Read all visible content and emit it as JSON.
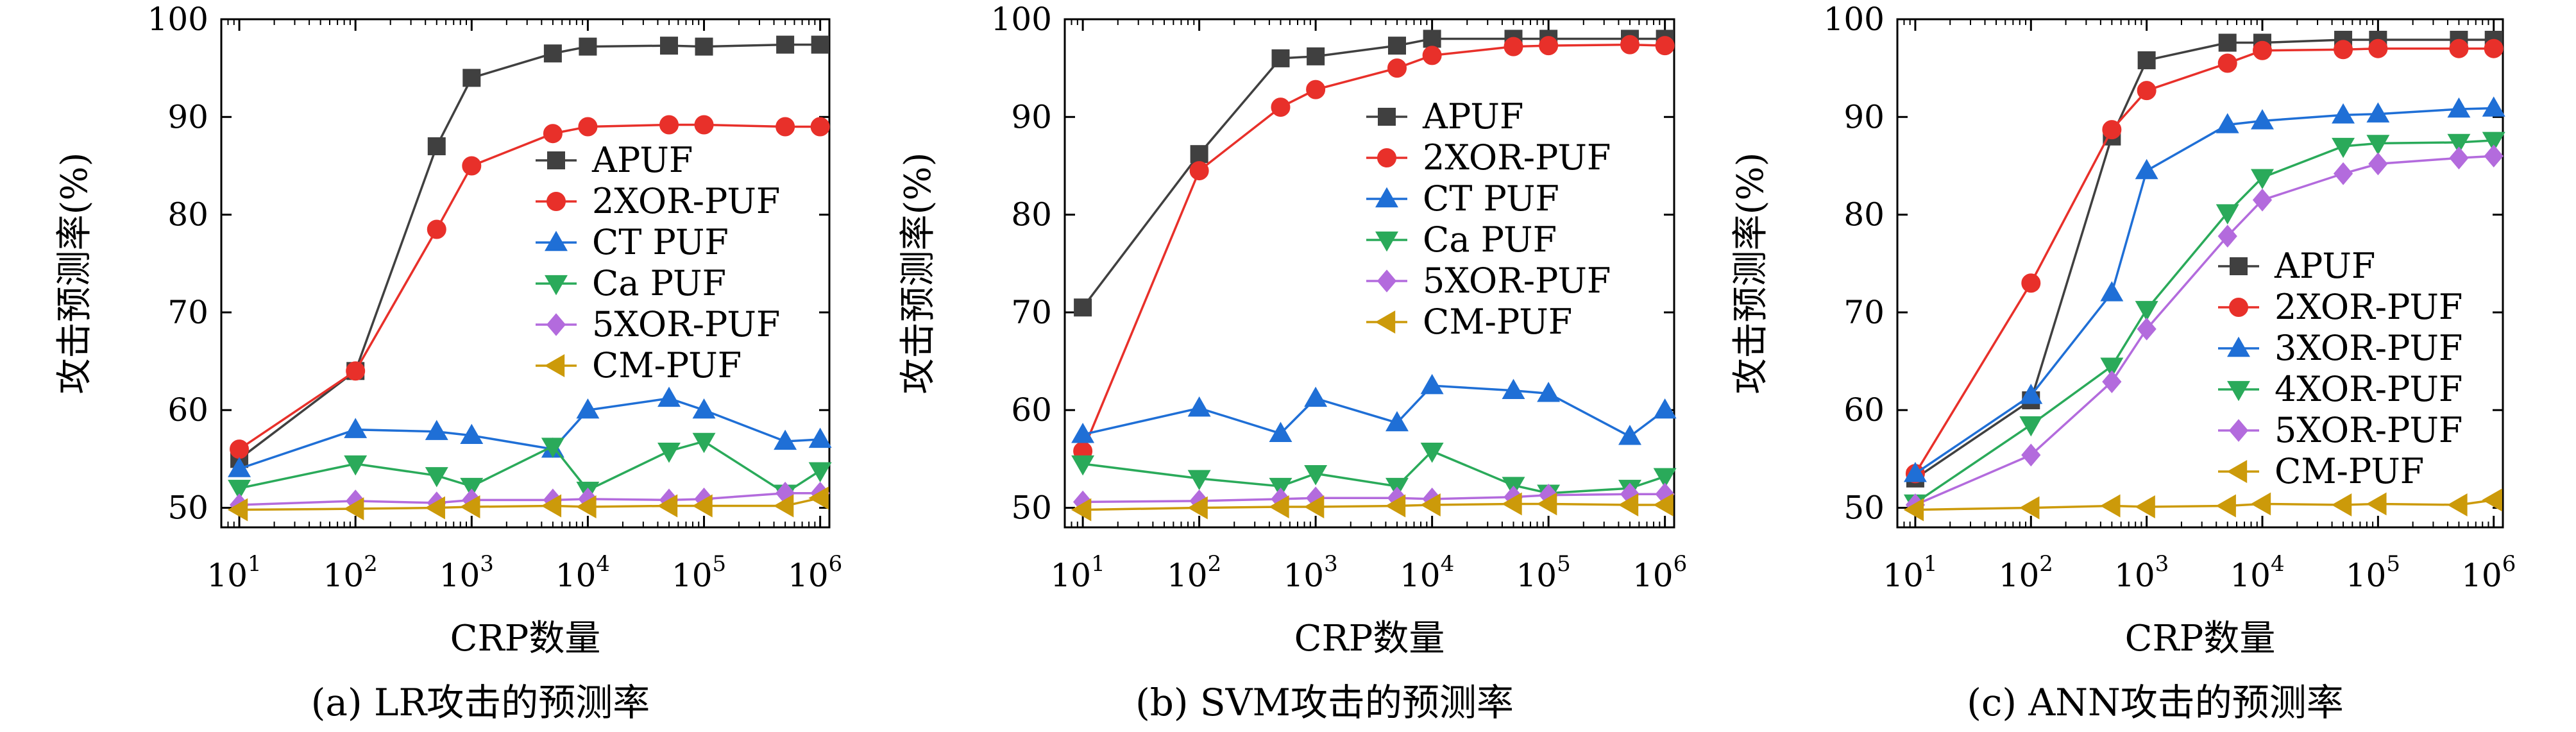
{
  "chart_data": [
    {
      "type": "line",
      "caption": "(a) LR攻击的预测率",
      "xlabel": "CRP数量",
      "ylabel": "攻击预测率(%)",
      "x_scale": "log",
      "xlim": [
        7,
        1200000
      ],
      "ylim": [
        48,
        100
      ],
      "yticks": [
        50,
        60,
        70,
        80,
        90,
        100
      ],
      "xticks": [
        {
          "value": 10,
          "base": "10",
          "exp": "1"
        },
        {
          "value": 100,
          "base": "10",
          "exp": "2"
        },
        {
          "value": 1000,
          "base": "10",
          "exp": "3"
        },
        {
          "value": 10000,
          "base": "10",
          "exp": "4"
        },
        {
          "value": 100000,
          "base": "10",
          "exp": "5"
        },
        {
          "value": 1000000,
          "base": "10",
          "exp": "6"
        }
      ],
      "legend_position": "center-right",
      "x": [
        10,
        100,
        500,
        1000,
        5000,
        10000,
        50000,
        100000,
        500000,
        1000000
      ],
      "series": [
        {
          "name": "APUF",
          "color": "#404040",
          "marker": "square",
          "values": [
            55.0,
            64.0,
            87.0,
            94.0,
            96.5,
            97.2,
            97.3,
            97.2,
            97.4,
            97.4
          ]
        },
        {
          "name": "2XOR-PUF",
          "color": "#e8302a",
          "marker": "circle",
          "values": [
            56.0,
            64.0,
            78.5,
            85.0,
            88.3,
            89.0,
            89.2,
            89.2,
            89.0,
            89.0
          ]
        },
        {
          "name": "CT PUF",
          "color": "#1f6fd6",
          "marker": "triangle-up",
          "values": [
            54.0,
            58.0,
            57.8,
            57.4,
            56.0,
            60.0,
            61.2,
            60.0,
            56.8,
            57.0
          ]
        },
        {
          "name": "Ca PUF",
          "color": "#2aaa5a",
          "marker": "triangle-down",
          "values": [
            52.0,
            54.5,
            53.3,
            52.2,
            56.3,
            51.8,
            55.8,
            56.8,
            51.5,
            53.8
          ]
        },
        {
          "name": "5XOR-PUF",
          "color": "#b36bdd",
          "marker": "diamond",
          "values": [
            50.3,
            50.7,
            50.5,
            50.8,
            50.8,
            50.9,
            50.8,
            50.9,
            51.5,
            51.5
          ]
        },
        {
          "name": "CM-PUF",
          "color": "#cc9a0a",
          "marker": "triangle-left",
          "values": [
            49.8,
            49.9,
            50.0,
            50.1,
            50.2,
            50.1,
            50.2,
            50.2,
            50.2,
            51.0
          ]
        }
      ]
    },
    {
      "type": "line",
      "caption": "(b) SVM攻击的预测率",
      "xlabel": "CRP数量",
      "ylabel": "攻击预测率(%)",
      "x_scale": "log",
      "xlim": [
        7,
        1200000
      ],
      "ylim": [
        48,
        100
      ],
      "yticks": [
        50,
        60,
        70,
        80,
        90,
        100
      ],
      "xticks": [
        {
          "value": 10,
          "base": "10",
          "exp": "1"
        },
        {
          "value": 100,
          "base": "10",
          "exp": "2"
        },
        {
          "value": 1000,
          "base": "10",
          "exp": "3"
        },
        {
          "value": 10000,
          "base": "10",
          "exp": "4"
        },
        {
          "value": 100000,
          "base": "10",
          "exp": "5"
        },
        {
          "value": 1000000,
          "base": "10",
          "exp": "6"
        }
      ],
      "legend_position": "top-right",
      "x": [
        10,
        100,
        500,
        1000,
        5000,
        10000,
        50000,
        100000,
        500000,
        1000000
      ],
      "series": [
        {
          "name": "APUF",
          "color": "#404040",
          "marker": "square",
          "values": [
            70.5,
            86.2,
            96.0,
            96.2,
            97.3,
            98.0,
            98.0,
            98.0,
            98.0,
            98.0
          ]
        },
        {
          "name": "2XOR-PUF",
          "color": "#e8302a",
          "marker": "circle",
          "values": [
            55.8,
            84.5,
            91.0,
            92.8,
            95.0,
            96.3,
            97.2,
            97.3,
            97.4,
            97.3
          ]
        },
        {
          "name": "CT PUF",
          "color": "#1f6fd6",
          "marker": "triangle-up",
          "values": [
            57.5,
            60.2,
            57.6,
            61.2,
            58.7,
            62.5,
            62.0,
            61.7,
            57.3,
            60.0
          ]
        },
        {
          "name": "Ca PUF",
          "color": "#2aaa5a",
          "marker": "triangle-down",
          "values": [
            54.5,
            53.0,
            52.2,
            53.5,
            52.2,
            55.8,
            52.3,
            51.5,
            52.0,
            53.2
          ]
        },
        {
          "name": "5XOR-PUF",
          "color": "#b36bdd",
          "marker": "diamond",
          "values": [
            50.6,
            50.7,
            50.9,
            51.0,
            51.0,
            50.9,
            51.1,
            51.3,
            51.4,
            51.4
          ]
        },
        {
          "name": "CM-PUF",
          "color": "#cc9a0a",
          "marker": "triangle-left",
          "values": [
            49.8,
            50.0,
            50.1,
            50.1,
            50.2,
            50.3,
            50.4,
            50.4,
            50.3,
            50.3
          ]
        }
      ]
    },
    {
      "type": "line",
      "caption": "(c) ANN攻击的预测率",
      "xlabel": "CRP数量",
      "ylabel": "攻击预测率(%)",
      "x_scale": "log",
      "xlim": [
        7,
        1200000
      ],
      "ylim": [
        48,
        100
      ],
      "yticks": [
        50,
        60,
        70,
        80,
        90,
        100
      ],
      "xticks": [
        {
          "value": 10,
          "base": "10",
          "exp": "1"
        },
        {
          "value": 100,
          "base": "10",
          "exp": "2"
        },
        {
          "value": 1000,
          "base": "10",
          "exp": "3"
        },
        {
          "value": 10000,
          "base": "10",
          "exp": "4"
        },
        {
          "value": 100000,
          "base": "10",
          "exp": "5"
        },
        {
          "value": 1000000,
          "base": "10",
          "exp": "6"
        }
      ],
      "legend_position": "center-right",
      "x": [
        10,
        100,
        500,
        1000,
        5000,
        10000,
        50000,
        100000,
        500000,
        1000000
      ],
      "series": [
        {
          "name": "APUF",
          "color": "#404040",
          "marker": "square",
          "values": [
            53.0,
            61.0,
            88.0,
            95.8,
            97.6,
            97.6,
            97.9,
            97.9,
            97.9,
            97.9
          ]
        },
        {
          "name": "2XOR-PUF",
          "color": "#e8302a",
          "marker": "circle",
          "values": [
            53.5,
            73.0,
            88.7,
            92.7,
            95.5,
            96.8,
            96.9,
            97.0,
            97.0,
            97.0
          ]
        },
        {
          "name": "3XOR-PUF",
          "color": "#1f6fd6",
          "marker": "triangle-up",
          "values": [
            53.5,
            61.5,
            72.0,
            84.5,
            89.2,
            89.6,
            90.2,
            90.3,
            90.8,
            90.9
          ]
        },
        {
          "name": "4XOR-PUF",
          "color": "#2aaa5a",
          "marker": "triangle-down",
          "values": [
            50.5,
            58.5,
            64.5,
            70.3,
            80.2,
            83.8,
            87.0,
            87.3,
            87.4,
            87.6
          ]
        },
        {
          "name": "5XOR-PUF",
          "color": "#b36bdd",
          "marker": "diamond",
          "values": [
            50.3,
            55.4,
            62.9,
            68.3,
            77.8,
            81.5,
            84.2,
            85.2,
            85.8,
            86.0
          ]
        },
        {
          "name": "CM-PUF",
          "color": "#cc9a0a",
          "marker": "triangle-left",
          "values": [
            49.8,
            50.0,
            50.2,
            50.1,
            50.2,
            50.4,
            50.3,
            50.4,
            50.3,
            50.8
          ]
        }
      ]
    }
  ]
}
